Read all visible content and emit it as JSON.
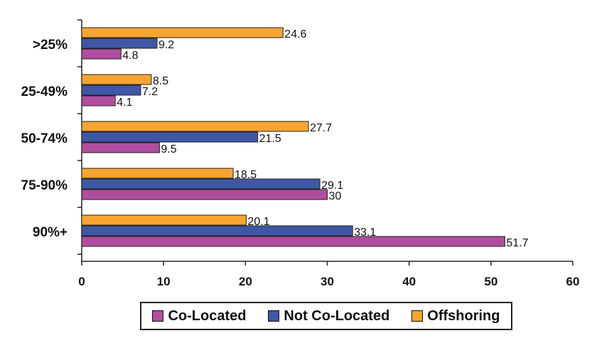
{
  "chart_data": {
    "type": "bar",
    "orientation": "horizontal",
    "categories": [
      ">25%",
      "25-49%",
      "50-74%",
      "75-90%",
      "90%+"
    ],
    "series": [
      {
        "name": "Offshoring",
        "color": "#f7a431",
        "values": [
          24.6,
          8.5,
          27.7,
          18.5,
          20.1
        ],
        "labels": [
          "24.6",
          "8.5",
          "27.7",
          "18.5",
          "20.1"
        ]
      },
      {
        "name": "Not Co-Located",
        "color": "#3f57a4",
        "values": [
          9.2,
          7.2,
          21.5,
          29.1,
          33.1
        ],
        "labels": [
          "9.2",
          "7.2",
          "21.5",
          "29.1",
          "33.1"
        ]
      },
      {
        "name": "Co-Located",
        "color": "#b04da0",
        "values": [
          4.8,
          4.1,
          9.5,
          30,
          51.7
        ],
        "labels": [
          "4.8",
          "4.1",
          "9.5",
          "30",
          "51.7"
        ]
      }
    ],
    "xlim": [
      0,
      60
    ],
    "xticks": [
      "0",
      "10",
      "20",
      "30",
      "40",
      "50",
      "60"
    ],
    "legend_order": [
      "Co-Located",
      "Not Co-Located",
      "Offshoring"
    ],
    "legend_position": "bottom",
    "grid": false
  }
}
